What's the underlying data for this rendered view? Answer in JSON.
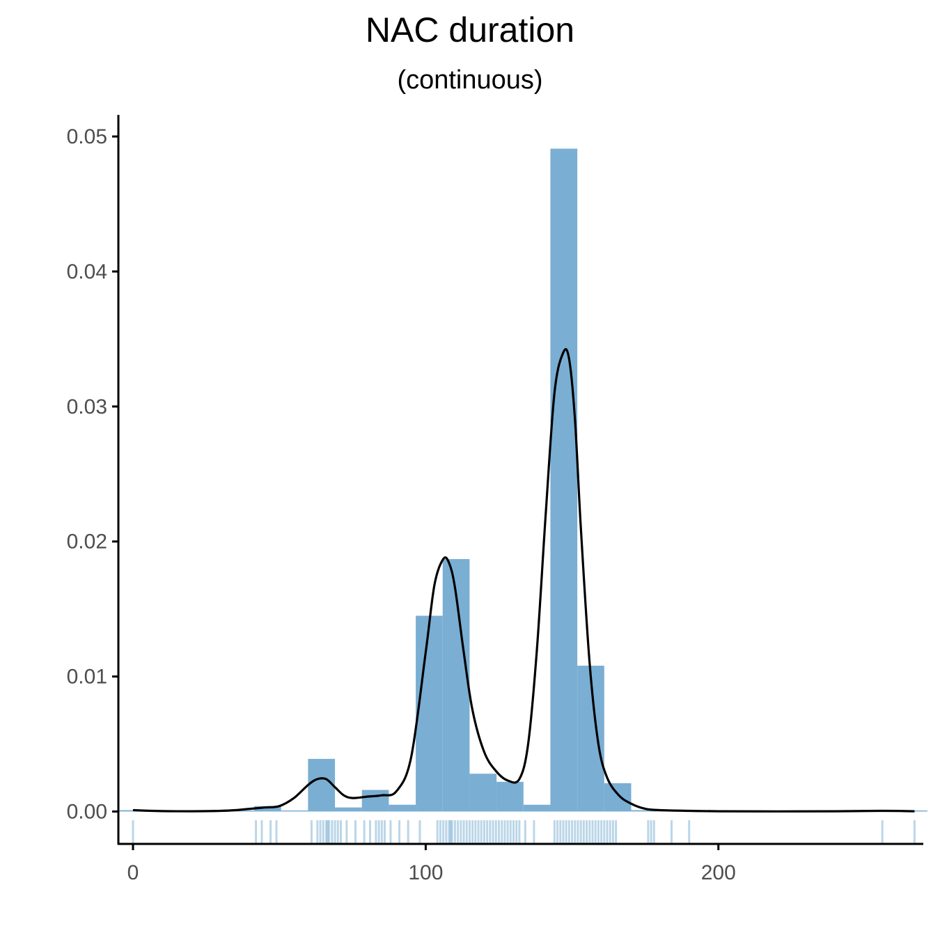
{
  "chart_data": {
    "type": "bar",
    "title": "NAC duration",
    "subtitle": "(continuous)",
    "xlabel": "",
    "ylabel": "",
    "xlim": [
      -5,
      270
    ],
    "ylim": [
      -0.0024,
      0.0516
    ],
    "x_ticks": [
      0,
      100,
      200
    ],
    "x_tick_labels": [
      "0",
      "100",
      "200"
    ],
    "y_ticks": [
      0,
      0.01,
      0.02,
      0.03,
      0.04,
      0.05
    ],
    "y_tick_labels": [
      "0.00",
      "0.01",
      "0.02",
      "0.03",
      "0.04",
      "0.05"
    ],
    "grid": false,
    "legend": "none",
    "colors": {
      "bar": "#7aaed3",
      "rug": "#1f77b4",
      "density": "#000000",
      "axis": "#000000",
      "tick_label": "#4d4d4d"
    },
    "histogram": {
      "bin_width": 9.2,
      "bins": [
        {
          "start": -4.6,
          "end": 4.6,
          "density": 0.0001
        },
        {
          "start": 4.6,
          "end": 13.8,
          "density": 0
        },
        {
          "start": 13.8,
          "end": 23.0,
          "density": 0
        },
        {
          "start": 23.0,
          "end": 32.2,
          "density": 0
        },
        {
          "start": 32.2,
          "end": 41.4,
          "density": 0
        },
        {
          "start": 41.4,
          "end": 50.6,
          "density": 0.0004
        },
        {
          "start": 50.6,
          "end": 59.8,
          "density": 0
        },
        {
          "start": 59.8,
          "end": 69.0,
          "density": 0.0039
        },
        {
          "start": 69.0,
          "end": 78.2,
          "density": 0.0003
        },
        {
          "start": 78.2,
          "end": 87.4,
          "density": 0.0016
        },
        {
          "start": 87.4,
          "end": 96.6,
          "density": 0.0005
        },
        {
          "start": 96.6,
          "end": 105.8,
          "density": 0.0145
        },
        {
          "start": 105.8,
          "end": 115.0,
          "density": 0.0187
        },
        {
          "start": 115.0,
          "end": 124.2,
          "density": 0.0028
        },
        {
          "start": 124.2,
          "end": 133.4,
          "density": 0.0022
        },
        {
          "start": 133.4,
          "end": 142.6,
          "density": 0.0005
        },
        {
          "start": 142.6,
          "end": 151.8,
          "density": 0.0491
        },
        {
          "start": 151.8,
          "end": 161.0,
          "density": 0.0108
        },
        {
          "start": 161.0,
          "end": 170.2,
          "density": 0.0021
        },
        {
          "start": 170.2,
          "end": 179.4,
          "density": 0.0001
        },
        {
          "start": 179.4,
          "end": 188.6,
          "density": 5e-05
        },
        {
          "start": 188.6,
          "end": 197.8,
          "density": 3e-05
        },
        {
          "start": 197.8,
          "end": 207.0,
          "density": 0
        },
        {
          "start": 207.0,
          "end": 216.2,
          "density": 0
        },
        {
          "start": 216.2,
          "end": 225.4,
          "density": 0
        },
        {
          "start": 225.4,
          "end": 234.6,
          "density": 0
        },
        {
          "start": 234.6,
          "end": 243.8,
          "density": 0
        },
        {
          "start": 243.8,
          "end": 253.0,
          "density": 0
        },
        {
          "start": 253.0,
          "end": 262.2,
          "density": 4e-05
        },
        {
          "start": 262.2,
          "end": 271.4,
          "density": 4e-05
        }
      ]
    },
    "density": {
      "x": [
        0,
        10,
        20,
        30,
        35,
        40,
        45,
        50,
        55,
        60,
        63,
        66,
        69,
        72,
        75,
        80,
        85,
        90,
        95,
        100,
        103,
        106,
        108,
        110,
        113,
        116,
        120,
        124,
        128,
        132,
        135,
        138,
        141,
        144,
        147,
        149,
        151,
        153,
        156,
        159,
        162,
        166,
        170,
        175,
        180,
        190,
        200,
        220,
        240,
        255,
        262,
        267
      ],
      "y": [
        0.0001,
        3e-05,
        2e-05,
        5e-05,
        0.0001,
        0.0002,
        0.0003,
        0.0004,
        0.001,
        0.002,
        0.0024,
        0.0024,
        0.0018,
        0.0012,
        0.001,
        0.0011,
        0.0012,
        0.0015,
        0.004,
        0.0118,
        0.0168,
        0.0187,
        0.0184,
        0.0166,
        0.0118,
        0.0075,
        0.0044,
        0.003,
        0.0023,
        0.0024,
        0.005,
        0.012,
        0.022,
        0.031,
        0.034,
        0.0335,
        0.029,
        0.021,
        0.011,
        0.005,
        0.0025,
        0.0012,
        0.0006,
        0.0002,
        0.0001,
        5e-05,
        2e-05,
        1e-05,
        2e-05,
        5e-05,
        4e-05,
        2e-05
      ]
    },
    "rug": [
      0,
      42,
      44,
      47,
      49,
      61,
      63,
      64,
      65,
      66,
      66.5,
      67,
      68,
      69,
      70,
      71,
      73,
      76,
      79,
      81,
      83,
      84,
      85,
      86,
      88,
      91,
      94,
      98,
      104,
      105,
      106,
      107,
      108,
      108.5,
      109,
      110,
      111,
      112,
      113,
      114,
      115,
      116,
      117,
      118,
      119,
      120,
      121,
      122,
      123,
      124,
      125,
      126,
      127,
      128,
      129,
      130,
      131,
      132,
      134,
      137,
      144,
      145,
      146,
      147,
      148,
      149,
      150,
      151,
      152,
      153,
      154,
      155,
      156,
      157,
      158,
      159,
      160,
      161,
      162,
      163,
      164,
      165,
      176,
      177,
      178,
      184,
      190,
      256,
      267
    ]
  }
}
